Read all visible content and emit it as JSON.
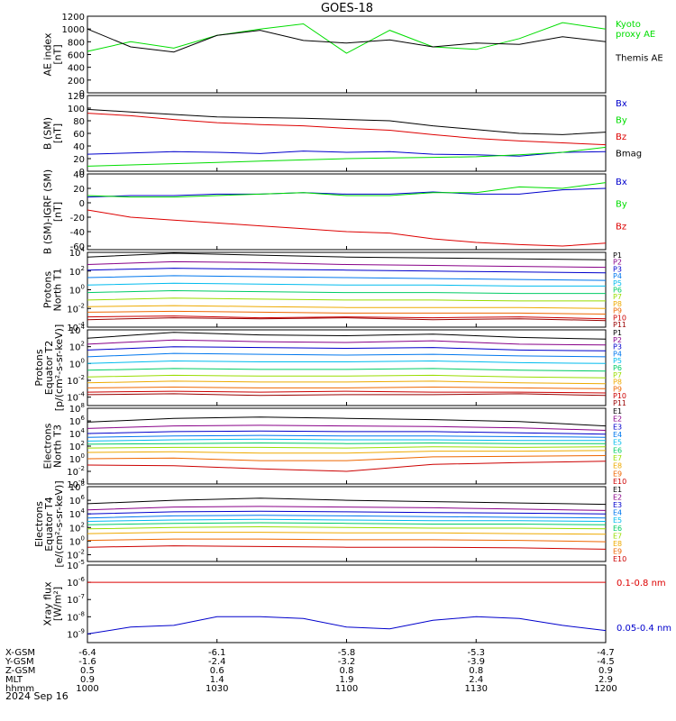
{
  "title": "GOES-18",
  "date_label": "2024 Sep 16",
  "x_rows": [
    {
      "label": "X-GSM",
      "values": [
        "-6.4",
        "-6.1",
        "-5.8",
        "-5.3",
        "-4.7"
      ]
    },
    {
      "label": "Y-GSM",
      "values": [
        "-1.6",
        "-2.4",
        "-3.2",
        "-3.9",
        "-4.5"
      ]
    },
    {
      "label": "Z-GSM",
      "values": [
        "0.5",
        "0.6",
        "0.8",
        "0.8",
        "0.9"
      ]
    },
    {
      "label": "MLT",
      "values": [
        "0.9",
        "1.4",
        "1.9",
        "2.4",
        "2.9"
      ]
    },
    {
      "label": "hhmm",
      "values": [
        "1000",
        "1030",
        "1100",
        "1130",
        "1200"
      ]
    }
  ],
  "chart_data": [
    {
      "type": "line",
      "ylabel": [
        "AE index",
        "[nT]"
      ],
      "ylim": [
        0,
        1200
      ],
      "yscale": "linear",
      "yticks": [
        "0",
        "200",
        "400",
        "600",
        "800",
        "1000",
        "1200"
      ],
      "x": [
        0,
        10,
        20,
        30,
        40,
        50,
        60,
        70,
        80,
        90,
        100,
        110,
        120
      ],
      "series": [
        {
          "name": "Kyoto\nproxy AE",
          "color": "#00dd00",
          "values": [
            650,
            800,
            700,
            900,
            1000,
            1080,
            620,
            980,
            720,
            680,
            850,
            1100,
            1000
          ]
        },
        {
          "name": "Themis AE",
          "color": "#000000",
          "values": [
            1000,
            720,
            640,
            900,
            980,
            820,
            780,
            830,
            720,
            780,
            760,
            880,
            800
          ]
        }
      ]
    },
    {
      "type": "line",
      "ylabel": [
        "B (SM)",
        "[nT]"
      ],
      "ylim": [
        0,
        120
      ],
      "yscale": "linear",
      "yticks": [
        "0",
        "20",
        "40",
        "60",
        "80",
        "100",
        "120"
      ],
      "x": [
        0,
        10,
        20,
        30,
        40,
        50,
        60,
        70,
        80,
        90,
        100,
        110,
        120
      ],
      "series": [
        {
          "name": "Bx",
          "color": "#0000cc",
          "values": [
            27,
            29,
            31,
            30,
            28,
            32,
            30,
            31,
            27,
            26,
            24,
            30,
            31
          ]
        },
        {
          "name": "By",
          "color": "#00dd00",
          "values": [
            8,
            10,
            12,
            14,
            16,
            18,
            20,
            21,
            22,
            23,
            26,
            30,
            38
          ]
        },
        {
          "name": "Bz",
          "color": "#dd0000",
          "values": [
            92,
            88,
            82,
            77,
            74,
            72,
            68,
            65,
            58,
            52,
            48,
            45,
            42
          ]
        },
        {
          "name": "Bmag",
          "color": "#000000",
          "values": [
            98,
            94,
            90,
            86,
            85,
            84,
            82,
            80,
            72,
            66,
            60,
            58,
            62
          ]
        }
      ]
    },
    {
      "type": "line",
      "ylabel": [
        "B (SM)-IGRF (SM)",
        "[nT]"
      ],
      "ylim": [
        -65,
        40
      ],
      "yscale": "linear",
      "yticks": [
        "-60",
        "-40",
        "-20",
        "0",
        "20",
        "40"
      ],
      "x": [
        0,
        10,
        20,
        30,
        40,
        50,
        60,
        70,
        80,
        90,
        100,
        110,
        120
      ],
      "series": [
        {
          "name": "Bx",
          "color": "#0000cc",
          "values": [
            8,
            10,
            10,
            12,
            12,
            14,
            12,
            12,
            15,
            12,
            12,
            18,
            20
          ]
        },
        {
          "name": "By",
          "color": "#00dd00",
          "values": [
            10,
            8,
            8,
            10,
            12,
            14,
            10,
            10,
            14,
            14,
            22,
            20,
            28
          ]
        },
        {
          "name": "Bz",
          "color": "#dd0000",
          "values": [
            -10,
            -20,
            -24,
            -28,
            -32,
            -36,
            -40,
            -42,
            -50,
            -55,
            -58,
            -60,
            -56
          ]
        }
      ]
    },
    {
      "type": "line",
      "ylabel": [
        "Protons",
        "North T1"
      ],
      "yscale": "log",
      "ylim_exp": [
        -4,
        4
      ],
      "yticks": [
        "10-4",
        "10-2",
        "100",
        "102",
        "104"
      ],
      "x": [
        0,
        20,
        40,
        60,
        80,
        100,
        120
      ],
      "series": [
        {
          "name": "P1",
          "color": "#000000",
          "logvalues": [
            3.5,
            3.9,
            3.7,
            3.5,
            3.4,
            3.3,
            3.2
          ]
        },
        {
          "name": "P2",
          "color": "#880088",
          "logvalues": [
            2.7,
            3.0,
            2.9,
            2.7,
            2.6,
            2.5,
            2.4
          ]
        },
        {
          "name": "P3",
          "color": "#0000cc",
          "logvalues": [
            2.1,
            2.3,
            2.2,
            2.1,
            2.0,
            1.9,
            1.8
          ]
        },
        {
          "name": "P4",
          "color": "#0077ee",
          "logvalues": [
            1.3,
            1.5,
            1.4,
            1.3,
            1.2,
            1.1,
            1.0
          ]
        },
        {
          "name": "P5",
          "color": "#00bbee",
          "logvalues": [
            0.5,
            0.7,
            0.6,
            0.5,
            0.5,
            0.4,
            0.4
          ]
        },
        {
          "name": "P6",
          "color": "#00cc66",
          "logvalues": [
            -0.3,
            -0.1,
            -0.2,
            -0.3,
            -0.3,
            -0.4,
            -0.4
          ]
        },
        {
          "name": "P7",
          "color": "#99dd00",
          "logvalues": [
            -1.1,
            -0.9,
            -1.0,
            -1.1,
            -1.1,
            -1.2,
            -1.2
          ]
        },
        {
          "name": "P8",
          "color": "#eeaa00",
          "logvalues": [
            -1.8,
            -1.7,
            -1.8,
            -1.9,
            -1.9,
            -1.9,
            -2.0
          ]
        },
        {
          "name": "P9",
          "color": "#ee6600",
          "logvalues": [
            -2.4,
            -2.3,
            -2.4,
            -2.5,
            -2.5,
            -2.5,
            -2.6
          ]
        },
        {
          "name": "P10",
          "color": "#cc0000",
          "logvalues": [
            -2.9,
            -2.8,
            -3.0,
            -2.9,
            -3.0,
            -2.9,
            -3.1
          ]
        },
        {
          "name": "P11",
          "color": "#990000",
          "logvalues": [
            -3.2,
            -3.0,
            -3.1,
            -3.0,
            -3.2,
            -3.1,
            -3.3
          ]
        }
      ]
    },
    {
      "type": "line",
      "ylabel": [
        "Protons",
        "Equator T2",
        "[p/(cm²-s-sr-keV)]"
      ],
      "yscale": "log",
      "ylim_exp": [
        -5,
        4
      ],
      "yticks": [
        "10-4",
        "10-2",
        "100",
        "102",
        "104"
      ],
      "x": [
        0,
        20,
        40,
        60,
        80,
        100,
        120
      ],
      "series": [
        {
          "name": "P1",
          "color": "#000000",
          "logvalues": [
            3.0,
            3.7,
            3.4,
            3.3,
            3.5,
            3.1,
            2.9
          ]
        },
        {
          "name": "P2",
          "color": "#880088",
          "logvalues": [
            2.3,
            2.8,
            2.6,
            2.5,
            2.7,
            2.3,
            2.2
          ]
        },
        {
          "name": "P3",
          "color": "#0000cc",
          "logvalues": [
            1.6,
            2.0,
            1.9,
            1.8,
            1.9,
            1.6,
            1.5
          ]
        },
        {
          "name": "P4",
          "color": "#0077ee",
          "logvalues": [
            0.8,
            1.2,
            1.1,
            1.0,
            1.1,
            0.9,
            0.8
          ]
        },
        {
          "name": "P5",
          "color": "#00bbee",
          "logvalues": [
            0.0,
            0.3,
            0.2,
            0.2,
            0.3,
            0.1,
            0.0
          ]
        },
        {
          "name": "P6",
          "color": "#00cc66",
          "logvalues": [
            -0.8,
            -0.6,
            -0.7,
            -0.7,
            -0.6,
            -0.8,
            -0.9
          ]
        },
        {
          "name": "P7",
          "color": "#99dd00",
          "logvalues": [
            -1.6,
            -1.4,
            -1.5,
            -1.5,
            -1.4,
            -1.6,
            -1.7
          ]
        },
        {
          "name": "P8",
          "color": "#eeaa00",
          "logvalues": [
            -2.3,
            -2.1,
            -2.2,
            -2.2,
            -2.1,
            -2.3,
            -2.4
          ]
        },
        {
          "name": "P9",
          "color": "#ee6600",
          "logvalues": [
            -2.9,
            -2.8,
            -2.9,
            -2.9,
            -2.8,
            -2.9,
            -3.0
          ]
        },
        {
          "name": "P10",
          "color": "#cc0000",
          "logvalues": [
            -3.4,
            -3.3,
            -3.4,
            -3.3,
            -3.4,
            -3.4,
            -3.5
          ]
        },
        {
          "name": "P11",
          "color": "#990000",
          "logvalues": [
            -3.7,
            -3.6,
            -3.8,
            -3.7,
            -3.7,
            -3.6,
            -3.8
          ]
        }
      ]
    },
    {
      "type": "line",
      "ylabel": [
        "Electrons",
        "North T3"
      ],
      "yscale": "log",
      "ylim_exp": [
        -4,
        8
      ],
      "yticks": [
        "10-4",
        "10-2",
        "100",
        "102",
        "104",
        "106",
        "108"
      ],
      "x": [
        0,
        20,
        40,
        60,
        80,
        100,
        120
      ],
      "series": [
        {
          "name": "E1",
          "color": "#000000",
          "logvalues": [
            5.8,
            6.4,
            6.6,
            6.4,
            6.2,
            5.9,
            5.2
          ]
        },
        {
          "name": "E2",
          "color": "#880088",
          "logvalues": [
            4.8,
            5.2,
            5.3,
            5.2,
            5.1,
            4.9,
            4.5
          ]
        },
        {
          "name": "E3",
          "color": "#0000cc",
          "logvalues": [
            4.0,
            4.3,
            4.4,
            4.3,
            4.3,
            4.1,
            3.9
          ]
        },
        {
          "name": "E4",
          "color": "#0077ee",
          "logvalues": [
            3.4,
            3.6,
            3.7,
            3.6,
            3.6,
            3.5,
            3.4
          ]
        },
        {
          "name": "E5",
          "color": "#00bbee",
          "logvalues": [
            2.8,
            3.0,
            3.1,
            3.0,
            3.0,
            2.9,
            2.9
          ]
        },
        {
          "name": "E6",
          "color": "#00cc66",
          "logvalues": [
            2.3,
            2.4,
            2.5,
            2.4,
            2.5,
            2.4,
            2.4
          ]
        },
        {
          "name": "E7",
          "color": "#99dd00",
          "logvalues": [
            1.7,
            1.8,
            1.8,
            1.7,
            1.9,
            1.8,
            1.9
          ]
        },
        {
          "name": "E8",
          "color": "#eeaa00",
          "logvalues": [
            1.0,
            1.1,
            0.9,
            0.9,
            1.2,
            1.2,
            1.3
          ]
        },
        {
          "name": "E9",
          "color": "#ee6600",
          "logvalues": [
            0.0,
            0.1,
            -0.3,
            -0.3,
            0.3,
            0.4,
            0.5
          ]
        },
        {
          "name": "E10",
          "color": "#cc0000",
          "logvalues": [
            -1.0,
            -1.1,
            -1.6,
            -2.0,
            -0.9,
            -0.6,
            -0.4
          ]
        }
      ]
    },
    {
      "type": "line",
      "ylabel": [
        "Electrons",
        "Equator T4",
        "[e/(cm²-s-sr-keV)]"
      ],
      "yscale": "log",
      "ylim_exp": [
        -3,
        8
      ],
      "yticks": [
        "10-2",
        "100",
        "102",
        "104",
        "106",
        "108"
      ],
      "x": [
        0,
        20,
        40,
        60,
        80,
        100,
        120
      ],
      "series": [
        {
          "name": "E1",
          "color": "#000000",
          "logvalues": [
            5.5,
            6.0,
            6.3,
            6.0,
            5.8,
            5.6,
            5.4
          ]
        },
        {
          "name": "E2",
          "color": "#880088",
          "logvalues": [
            4.6,
            5.0,
            5.1,
            5.0,
            4.9,
            4.7,
            4.5
          ]
        },
        {
          "name": "E3",
          "color": "#0000cc",
          "logvalues": [
            4.0,
            4.3,
            4.4,
            4.3,
            4.2,
            4.1,
            4.0
          ]
        },
        {
          "name": "E4",
          "color": "#0077ee",
          "logvalues": [
            3.4,
            3.7,
            3.8,
            3.7,
            3.6,
            3.5,
            3.4
          ]
        },
        {
          "name": "E5",
          "color": "#00bbee",
          "logvalues": [
            2.9,
            3.1,
            3.2,
            3.1,
            3.0,
            3.0,
            2.9
          ]
        },
        {
          "name": "E6",
          "color": "#00cc66",
          "logvalues": [
            2.4,
            2.6,
            2.7,
            2.6,
            2.5,
            2.5,
            2.4
          ]
        },
        {
          "name": "E7",
          "color": "#99dd00",
          "logvalues": [
            1.8,
            2.0,
            2.1,
            2.0,
            1.9,
            1.9,
            1.8
          ]
        },
        {
          "name": "E8",
          "color": "#eeaa00",
          "logvalues": [
            1.1,
            1.3,
            1.3,
            1.2,
            1.2,
            1.1,
            1.0
          ]
        },
        {
          "name": "E9",
          "color": "#ee6600",
          "logvalues": [
            0.1,
            0.3,
            0.3,
            0.2,
            0.2,
            0.1,
            -0.1
          ]
        },
        {
          "name": "E10",
          "color": "#cc0000",
          "logvalues": [
            -0.9,
            -0.7,
            -0.8,
            -0.9,
            -0.9,
            -1.0,
            -1.2
          ]
        }
      ]
    },
    {
      "type": "line",
      "ylabel": [
        "Xray flux",
        "[W/m²]"
      ],
      "yscale": "log",
      "ylim_exp": [
        -9.5,
        -5
      ],
      "yticks": [
        "10-9",
        "10-8",
        "10-7",
        "10-6",
        "10-5"
      ],
      "x": [
        0,
        10,
        20,
        30,
        40,
        50,
        60,
        70,
        80,
        90,
        100,
        110,
        120
      ],
      "series": [
        {
          "name": "0.1-0.8 nm",
          "color": "#dd0000",
          "logvalues": [
            -6.0,
            -6.0,
            -6.0,
            -6.0,
            -6.0,
            -6.0,
            -6.0,
            -6.0,
            -6.0,
            -6.0,
            -6.0,
            -6.0,
            -6.0
          ]
        },
        {
          "name": "0.05-0.4 nm",
          "color": "#0000cc",
          "logvalues": [
            -9.0,
            -8.6,
            -8.5,
            -8.0,
            -8.0,
            -8.1,
            -8.6,
            -8.7,
            -8.2,
            -8.0,
            -8.1,
            -8.5,
            -8.8
          ]
        }
      ]
    }
  ]
}
